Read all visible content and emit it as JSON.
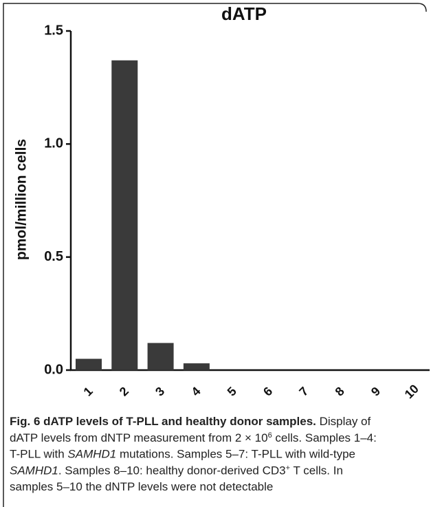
{
  "chart_data": {
    "type": "bar",
    "title": "dATP",
    "y_label": "pmol/million cells",
    "categories": [
      "1",
      "2",
      "3",
      "4",
      "5",
      "6",
      "7",
      "8",
      "9",
      "10"
    ],
    "values": [
      0.05,
      1.37,
      0.12,
      0.03,
      null,
      null,
      null,
      null,
      null,
      null
    ],
    "color": "#3a3a3a",
    "ylim": [
      0,
      1.5
    ],
    "yticks": [
      {
        "value": 0,
        "label": "0.0"
      },
      0.5,
      {
        "value": 1,
        "label": "1.0"
      },
      1.5
    ],
    "grid": false
  },
  "caption": {
    "lines": [
      [
        {
          "text": "Fig. 6 dATP levels of T-PLL and healthy donor samples.",
          "style": "bold"
        },
        {
          "text": " Display of",
          "style": "plain"
        }
      ],
      [
        {
          "text": "dATP levels from dNTP measurement from 2 × 10",
          "style": "plain"
        },
        {
          "text": "6",
          "style": "sup"
        },
        {
          "text": " cells. Samples 1–4:",
          "style": "plain"
        }
      ],
      [
        {
          "text": "T-PLL with ",
          "style": "plain"
        },
        {
          "text": "SAMHD1",
          "style": "italic"
        },
        {
          "text": " mutations. Samples 5–7: T-PLL with wild-type",
          "style": "plain"
        }
      ],
      [
        {
          "text": "SAMHD1",
          "style": "italic"
        },
        {
          "text": ". Samples 8–10: healthy donor-derived CD3",
          "style": "plain"
        },
        {
          "text": "+",
          "style": "sup"
        },
        {
          "text": " T cells. In",
          "style": "plain"
        }
      ],
      [
        {
          "text": "samples 5–10 the dNTP levels were not detectable",
          "style": "plain"
        }
      ]
    ]
  }
}
